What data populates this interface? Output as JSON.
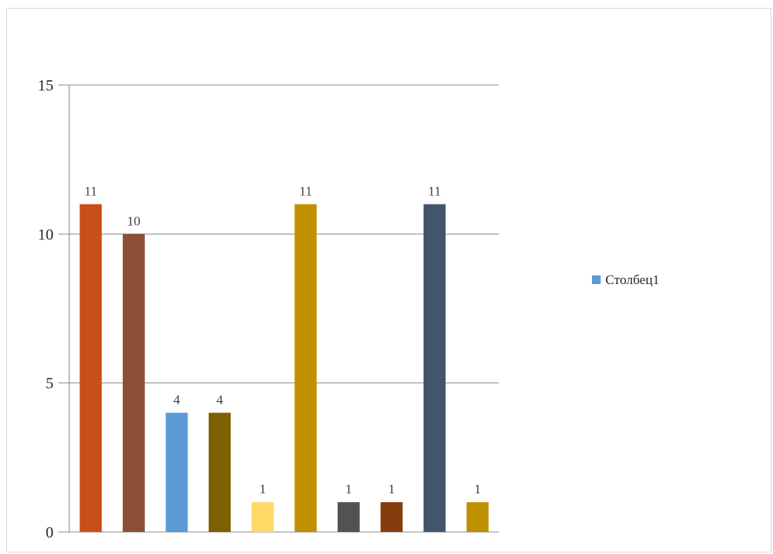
{
  "chart_data": {
    "type": "bar",
    "categories": [
      "",
      "",
      "",
      "",
      "",
      "",
      "",
      "",
      "",
      ""
    ],
    "series": [
      {
        "name": "Столбец1",
        "values": [
          11,
          10,
          4,
          4,
          1,
          11,
          1,
          1,
          11,
          1
        ]
      }
    ],
    "bar_colors": [
      "#c84f1a",
      "#8b5035",
      "#5b9bd5",
      "#7f6000",
      "#ffd966",
      "#bf9000",
      "#525252",
      "#843c0c",
      "#44546a",
      "#bf9000"
    ],
    "legend_color": "#5b9bd5",
    "ylim": [
      0,
      15
    ],
    "yticks": [
      "0",
      "5",
      "10",
      "15"
    ],
    "grid": true,
    "legend_position": "right",
    "data_labels": true
  }
}
